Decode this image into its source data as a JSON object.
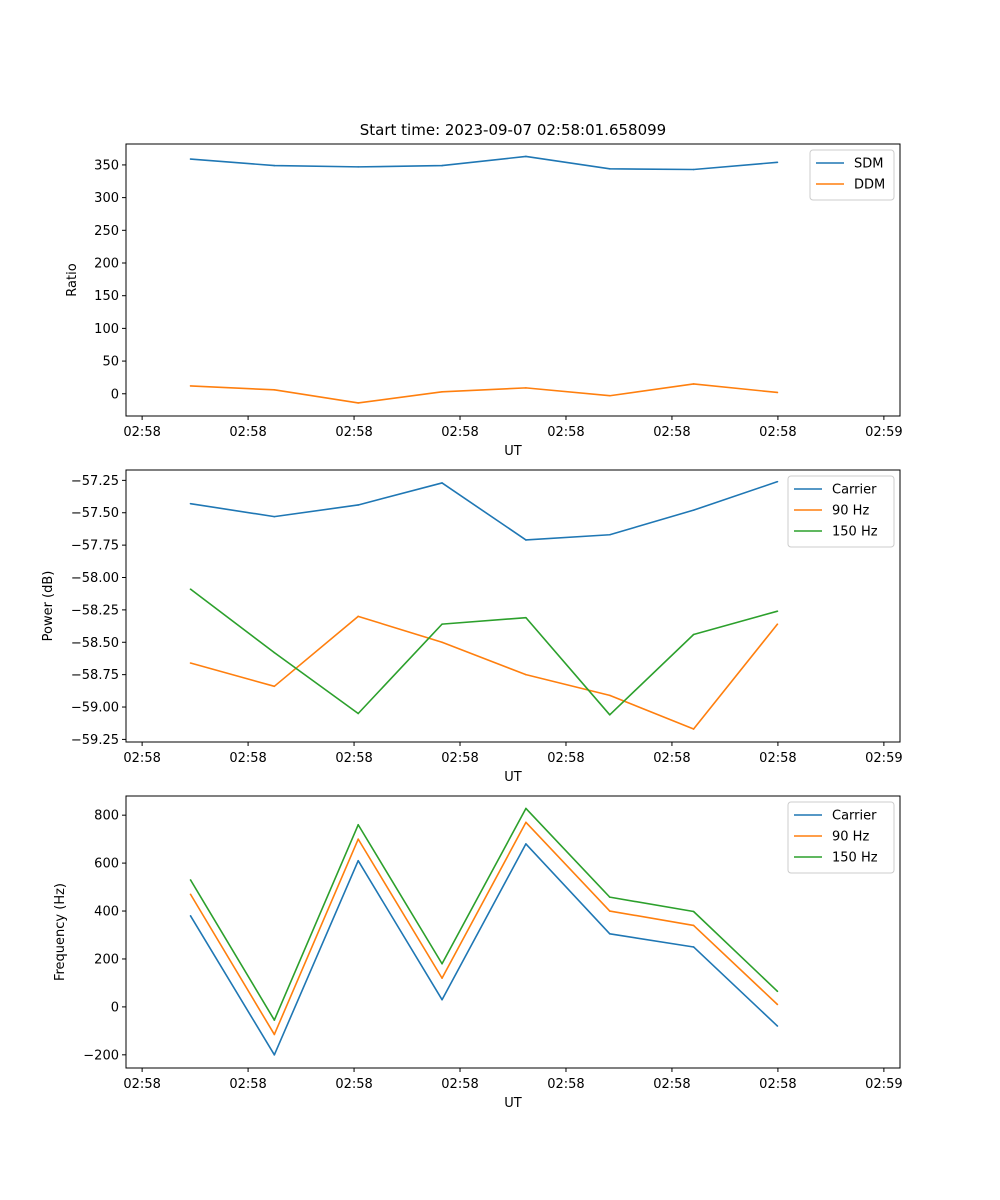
{
  "chart_data": [
    {
      "type": "line",
      "title": "Start time: 2023-09-07 02:58:01.658099",
      "xlabel": "UT",
      "ylabel": "Ratio",
      "x_tick_labels": [
        "02:58",
        "02:58",
        "02:58",
        "02:58",
        "02:58",
        "02:58",
        "02:58",
        "02:59"
      ],
      "xlim": [
        0,
        12
      ],
      "ylim": [
        -34,
        382
      ],
      "y_ticks": [
        0,
        50,
        100,
        150,
        200,
        250,
        300,
        350
      ],
      "legend_position": "upper right",
      "x": [
        1,
        2.3,
        3.6,
        4.9,
        6.2,
        7.5,
        8.8,
        10.1
      ],
      "series": [
        {
          "name": "SDM",
          "color": "#1f77b4",
          "values": [
            359,
            349,
            347,
            349,
            363,
            344,
            343,
            354
          ]
        },
        {
          "name": "DDM",
          "color": "#ff7f0e",
          "values": [
            12,
            6,
            -14,
            3,
            9,
            -3,
            15,
            2
          ]
        }
      ]
    },
    {
      "type": "line",
      "title": "",
      "xlabel": "UT",
      "ylabel": "Power (dB)",
      "x_tick_labels": [
        "02:58",
        "02:58",
        "02:58",
        "02:58",
        "02:58",
        "02:58",
        "02:58",
        "02:59"
      ],
      "xlim": [
        0,
        12
      ],
      "ylim": [
        -59.27,
        -57.17
      ],
      "y_ticks": [
        -57.25,
        -57.5,
        -57.75,
        -58.0,
        -58.25,
        -58.5,
        -58.75,
        -59.0,
        -59.25
      ],
      "y_tick_labels": [
        "−57.25",
        "−57.50",
        "−57.75",
        "−58.00",
        "−58.25",
        "−58.50",
        "−58.75",
        "−59.00",
        "−59.25"
      ],
      "legend_position": "upper right",
      "x": [
        1,
        2.3,
        3.6,
        4.9,
        6.2,
        7.5,
        8.8,
        10.1
      ],
      "series": [
        {
          "name": "Carrier",
          "color": "#1f77b4",
          "values": [
            -57.43,
            -57.53,
            -57.44,
            -57.27,
            -57.71,
            -57.67,
            -57.48,
            -57.26
          ]
        },
        {
          "name": "90 Hz",
          "color": "#ff7f0e",
          "values": [
            -58.66,
            -58.84,
            -58.3,
            -58.5,
            -58.75,
            -58.91,
            -59.17,
            -58.36
          ]
        },
        {
          "name": "150 Hz",
          "color": "#2ca02c",
          "values": [
            -58.09,
            -58.58,
            -59.05,
            -58.36,
            -58.31,
            -59.06,
            -58.44,
            -58.26
          ]
        }
      ]
    },
    {
      "type": "line",
      "title": "",
      "xlabel": "UT",
      "ylabel": "Frequency (Hz)",
      "x_tick_labels": [
        "02:58",
        "02:58",
        "02:58",
        "02:58",
        "02:58",
        "02:58",
        "02:58",
        "02:59"
      ],
      "xlim": [
        0,
        12
      ],
      "ylim": [
        -255,
        880
      ],
      "y_ticks": [
        -200,
        0,
        200,
        400,
        600,
        800
      ],
      "y_tick_labels": [
        "−200",
        "0",
        "200",
        "400",
        "600",
        "800"
      ],
      "legend_position": "upper right",
      "x": [
        1,
        2.3,
        3.6,
        4.9,
        6.2,
        7.5,
        8.8,
        10.1
      ],
      "series": [
        {
          "name": "Carrier",
          "color": "#1f77b4",
          "values": [
            380,
            -200,
            610,
            30,
            680,
            305,
            250,
            -80
          ]
        },
        {
          "name": "90 Hz",
          "color": "#ff7f0e",
          "values": [
            470,
            -115,
            700,
            120,
            770,
            400,
            340,
            10
          ]
        },
        {
          "name": "150 Hz",
          "color": "#2ca02c",
          "values": [
            530,
            -55,
            760,
            180,
            828,
            458,
            398,
            65
          ]
        }
      ]
    }
  ]
}
